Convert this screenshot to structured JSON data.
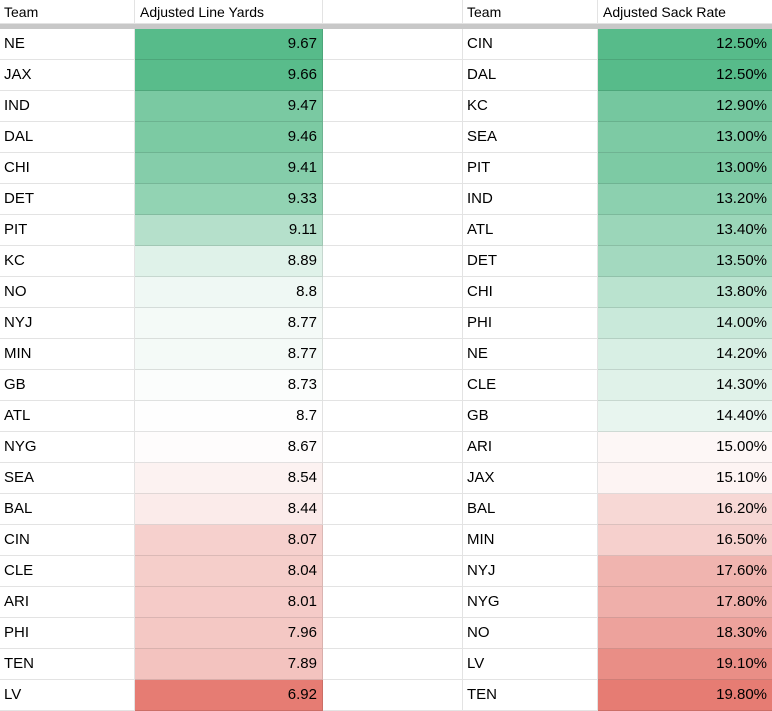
{
  "sheet": {
    "divider_color": "#c8c8c8",
    "color_scale": {
      "min_color": "#57BB8A",
      "mid_color": "#FFFFFF",
      "max_color": "#E67C73"
    },
    "tables": [
      {
        "team_header": "Team",
        "value_header": "Adjusted Line Yards",
        "rows": [
          {
            "team": "NE",
            "value": "9.67",
            "bg": "#57BB8A"
          },
          {
            "team": "JAX",
            "value": "9.66",
            "bg": "#59BC8B"
          },
          {
            "team": "IND",
            "value": "9.47",
            "bg": "#7AC9A2"
          },
          {
            "team": "DAL",
            "value": "9.46",
            "bg": "#7CCAA3"
          },
          {
            "team": "CHI",
            "value": "9.41",
            "bg": "#85CDAA"
          },
          {
            "team": "DET",
            "value": "9.33",
            "bg": "#92D3B3"
          },
          {
            "team": "PIT",
            "value": "9.11",
            "bg": "#B5E0CB"
          },
          {
            "team": "KC",
            "value": "8.89",
            "bg": "#DFF2E9"
          },
          {
            "team": "NO",
            "value": "8.8",
            "bg": "#EFF8F4"
          },
          {
            "team": "NYJ",
            "value": "8.77",
            "bg": "#F4FAF7"
          },
          {
            "team": "MIN",
            "value": "8.77",
            "bg": "#F4FAF7"
          },
          {
            "team": "GB",
            "value": "8.73",
            "bg": "#FBFDFC"
          },
          {
            "team": "ATL",
            "value": "8.7",
            "bg": "#FEFEFE"
          },
          {
            "team": "NYG",
            "value": "8.67",
            "bg": "#FEFCFC"
          },
          {
            "team": "SEA",
            "value": "8.54",
            "bg": "#FCF2F1"
          },
          {
            "team": "BAL",
            "value": "8.44",
            "bg": "#FBEBEA"
          },
          {
            "team": "CIN",
            "value": "8.07",
            "bg": "#F6D0CD"
          },
          {
            "team": "CLE",
            "value": "8.04",
            "bg": "#F5CECA"
          },
          {
            "team": "ARI",
            "value": "8.01",
            "bg": "#F5CBC8"
          },
          {
            "team": "PHI",
            "value": "7.96",
            "bg": "#F4C8C4"
          },
          {
            "team": "TEN",
            "value": "7.89",
            "bg": "#F3C3BF"
          },
          {
            "team": "LV",
            "value": "6.92",
            "bg": "#E67C73"
          }
        ]
      },
      {
        "team_header": "Team",
        "value_header": "Adjusted Sack Rate",
        "rows": [
          {
            "team": "CIN",
            "value": "12.50%",
            "bg": "#57BB8A"
          },
          {
            "team": "DAL",
            "value": "12.50%",
            "bg": "#57BB8A"
          },
          {
            "team": "KC",
            "value": "12.90%",
            "bg": "#75C79F"
          },
          {
            "team": "SEA",
            "value": "13.00%",
            "bg": "#7DCAA4"
          },
          {
            "team": "PIT",
            "value": "13.00%",
            "bg": "#7DCAA4"
          },
          {
            "team": "IND",
            "value": "13.20%",
            "bg": "#8CD0AF"
          },
          {
            "team": "ATL",
            "value": "13.40%",
            "bg": "#9BD6B9"
          },
          {
            "team": "DET",
            "value": "13.50%",
            "bg": "#A3D9BF"
          },
          {
            "team": "CHI",
            "value": "13.80%",
            "bg": "#BAE3CF"
          },
          {
            "team": "PHI",
            "value": "14.00%",
            "bg": "#C9E9DA"
          },
          {
            "team": "NE",
            "value": "14.20%",
            "bg": "#D8EFE4"
          },
          {
            "team": "CLE",
            "value": "14.30%",
            "bg": "#E0F2E9"
          },
          {
            "team": "GB",
            "value": "14.40%",
            "bg": "#E8F5EF"
          },
          {
            "team": "ARI",
            "value": "15.00%",
            "bg": "#FDF7F6"
          },
          {
            "team": "JAX",
            "value": "15.10%",
            "bg": "#FDF4F3"
          },
          {
            "team": "BAL",
            "value": "16.20%",
            "bg": "#F7D8D5"
          },
          {
            "team": "MIN",
            "value": "16.50%",
            "bg": "#F6D0CD"
          },
          {
            "team": "NYJ",
            "value": "17.60%",
            "bg": "#F0B4AF"
          },
          {
            "team": "NYG",
            "value": "17.80%",
            "bg": "#EFAFAA"
          },
          {
            "team": "NO",
            "value": "18.30%",
            "bg": "#EDA29C"
          },
          {
            "team": "LV",
            "value": "19.10%",
            "bg": "#E98E86"
          },
          {
            "team": "TEN",
            "value": "19.80%",
            "bg": "#E67C73"
          }
        ]
      }
    ]
  }
}
